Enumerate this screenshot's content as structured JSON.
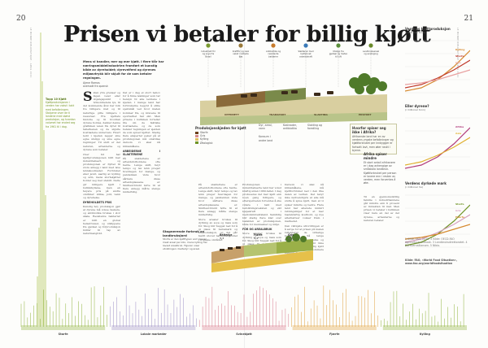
{
  "page": {
    "left_number": "20",
    "right_number": "21",
    "left_running_head": "LE MONDE DIPLOMATIQUE · APRIL 2021",
    "right_running_head": "LE MONDE DIPLOMATIQUE · APRIL 2021"
  },
  "article": {
    "title": "Prisen vi betaler for billig kjøtt",
    "lead": "Mens vi handler, mer og mer kjøtt. I flere tiår har næringsmiddelindustrien framført et kunstig bilde av dyreholdet; dyrevelferd og dyrenes miljøavtrykk blir skjult for de som betaler regningen.",
    "byline": "Ajene Ramos\noversatt fra spansk",
    "dropcap": "S",
    "col1_text": "iden ytre grenser og ingen veier eller utgangspunkt i tvilsomhetens lys, til det kommende året har folk tre billigere mat og til naturlige gitte billigere i ressurser. Fra kjøttets historie og til hvordan dyrene holdes, dekker denne grafikken veien fra dyret til tallerkenen og de skjulte kostnadene underveis. Hvert ledd i kjeden legger sine egne utslipp og sine egne regninger. Til slutt er det naturen, arbeiderne og dyrene som betaler.",
    "col1_text2": "Over tid har kjøttproduksjonen blitt mer industrialisert, og produksjonen er flyttet til store anlegg i land med lave lønnskostnader. Forbruket øker jevnt, særlig av kylling og svin, mens storfekjøttet holder seg mer stabilt. Dette gir billigere kjøtt i butikkhyllene, men en høyere pris på andre områder: klima, jord, vann og dyrehelse.",
    "col1_heading": "DYREHOLDETS PRIS",
    "col1_text3": "Kunstig høy produksjon gjør at dyrene må vokse raskere, og antibiotika brukes i stor skala. Resistente bakterier er blitt en global helsetrussel, og utslippene fra gjødsel og fôrproduksjon bidrar til tap av naturmangfold.",
    "col2_text": "Det er i dag et stort behov for å finne løsninger som tar hensyn til alle leddene i kjeden. I mange land har forbrukerne begynt å stille spørsmål ved hvor maten kommer fra, og kravene til sporbarhet har økt. Men prisene i butikken forteller lite om de faktiske kostnadene, og de som betaler regningen er sjelden de som spiser kjøttet. Stadig flere eksperter peker på at produksjonen må omstilles dersom vi skal nå klimamålene.",
    "col2_heading": "ARBEIDERNE I SLAKTERIENE",
    "col2_text2": "På slakteriene er arbeidsforholdene ofte harde. Lange skift, høyt tempo og lav lønn preger hverdagen for mange, og pandemien viste hvor sårbare disse arbeidsplassene er. Smitteutbrudd førte til at flere anlegg måtte stenge midlertidig.",
    "col3_text": "Produksjonen i industrialiserte land har vokst kraftig siden 1960-tallet. I dag produseres det mer kjøtt enn noen gang tidligere, og etterspørselen forventes å øke videre i takt med befolkningsveksten og økt kjøpekraft i mellominntektsland. Samtidig blir stadig flere klar over baksiden av produksjonen, både for mennesker og miljø.",
    "col3_heading": "FÔR OG AREALBRUK",
    "col3_text2": "Store arealer brukes til dyrking av soya og mais som fôr. Skog blir hugget ned for å gi plass til beitemark og fôrproduksjon, og det går hardt utover naturmangfoldet i tropiske områder.",
    "col4_text": "Dersom vi skal nå klimamålene, må kjøttforbruket ned i den rike delen av verden. Det betyr ikke nødvendigvis at alle må slutte å spise kjøtt, men at vi spiser mindre og bedre. Flere land har allerede innført retningslinjer for et mer bærekraftig kosthold, og nye alternativer vokser fram i markedet.",
    "col4_text2": "Den viktigste utfordringen er å sørge for at prisen på maten reflekterer de virkelige kostnadene. Så lenge forurensning, dyrelidelse og dårlige arbeidsforhold ikke har noen pris, vil billig kjøtt fortsette å dominere butikkhyllene."
  },
  "sidenote": {
    "title": "Topp 10 Kjøtt",
    "text": "Kjøttproduksjonen i verden har vokst i takt med befolkningen. Stolpene viser de ti landene med størst produksjon, og hvordan volumet har endret seg fra 1961 til i dag."
  },
  "diagram": {
    "stages": [
      {
        "label": "Industrielt fôr og soya fra Brasil",
        "color": "#7a9a2f"
      },
      {
        "label": "Kraftfôr og rask vekst i lukkede fjøs",
        "color": "#9a7a3a"
      },
      {
        "label": "Antibiotika og resistente bakterier",
        "color": "#c77b2c"
      },
      {
        "label": "Slakterier med lavtlønnet arbeidskraft",
        "color": "#3a7ab8"
      },
      {
        "label": "Utslipp fra gjødsel og metan til luft",
        "color": "#5b8f3a"
      },
      {
        "label": "Landbruksareal og avskoging",
        "color": "#6a8a2a"
      }
    ],
    "band_labels": [
      "OPPDRETT",
      "TRANSPORT",
      "SLAKTING",
      "EKSPORT"
    ],
    "sub_notes": [
      "Dyr, areal, vann",
      "Kostnader, antibiotika",
      "Slakting og foredling",
      "Konsum i andre land"
    ],
    "legend_title": "Produksjonskjeden for kjøtt",
    "legend_items": [
      {
        "label": "Storfe",
        "color": "#6b3f1a"
      },
      {
        "label": "Gris",
        "color": "#d68a8a"
      },
      {
        "label": "Kylling",
        "color": "#e0c060"
      },
      {
        "label": "Økologisk",
        "color": "#6f9426"
      }
    ]
  },
  "box": {
    "title": "Hvorfor spiser seg ikke i Afrika?",
    "text": "Afrikanske land har en av verdens yngste befolkninger og kjøttforbruket per innbygger er fortsatt lavt, men øker raskt i byene."
  },
  "bottom_panel": {
    "title": "Stagnerende forbruk av landbruksjord",
    "text": "Storfe er den kjøtttypen som krever mest areal per kilo, mens kylling har lavest arealbruk. Figuren viser utviklingen i beitedyr og areal.",
    "labels": [
      "Beitedyr",
      "Fjørfe",
      "Gris"
    ],
    "numbers": [
      "3,4",
      "1,2",
      "0,8"
    ]
  },
  "strip": {
    "regions": [
      {
        "name": "Storfe",
        "color": "#8fb33c"
      },
      {
        "name": "Lokale markeder",
        "color": "#9d8fc7"
      },
      {
        "name": "Svinekjøtt",
        "color": "#d97b8f"
      },
      {
        "name": "Fjærfe",
        "color": "#e0a03c"
      },
      {
        "name": "Kylling",
        "color": "#8fb33c"
      }
    ]
  },
  "right_charts": [
    {
      "title": "Verdens kjøttproduksjon",
      "subtitle": "(i millioner tonn)",
      "labels": [
        "Kylling",
        "Storfe",
        "Gris"
      ],
      "colors": [
        "#d68a30",
        "#c0392b",
        "#e8a0a0"
      ]
    },
    {
      "title": "Eller dyrene?",
      "subtitle": "(i millioner tonn)",
      "labels": [
        "Afrika",
        "Asia"
      ],
      "colors": [
        "#b03a7a",
        "#e0b030"
      ]
    },
    {
      "title": "Verdens dyrkede mark",
      "subtitle": "(i millioner ha)",
      "labels": [
        "Storfe",
        "Gris",
        "Fjærfe"
      ],
      "colors": [
        "#6f9426",
        "#d6a0c0",
        "#d68a30"
      ]
    }
  ],
  "right_note": {
    "title": "Afrika spiser mindre",
    "text": "Et stort antall afrikanere er i dag avhengige av småskala landbruk. Kjøttforbruket per person er lavere enn i resten av verden, men forventes å øke."
  },
  "right_text": "Til en gjennomsnittlig familie i industrilandene går mindre enn ti prosent av inntekten til mat. Men prisen vi betaler i butikken viser bare en del av det dyrene, arbeiderne og naturen betaler.",
  "source": "Kilde: FAO, «World Food Situation», www.fao.org/worldfoodsituation",
  "footnotes": "1 Kilde: FAO, 2020. 2 Kilde: OECD-FAO Agricultural Outlook. 3 Landbruksdirektoratet. 4 Dyrevernalliansen. 5 Nibio."
}
